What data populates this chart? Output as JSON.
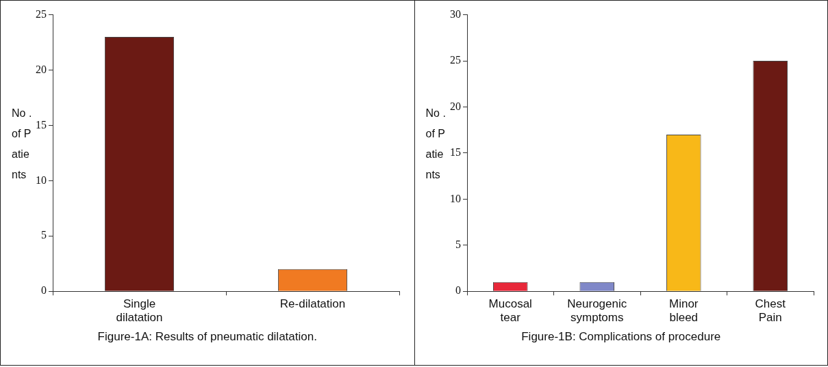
{
  "chart_data": [
    {
      "type": "bar",
      "categories": [
        "Single dilatation",
        "Re-dilatation"
      ],
      "values": [
        23,
        2
      ],
      "colors": [
        "#6b1a14",
        "#f07a22"
      ],
      "ylabel": "No .of Patients",
      "ylim": [
        0,
        25
      ],
      "yticks": [
        0,
        5,
        10,
        15,
        20,
        25
      ],
      "annotations": [
        "Figure-1A: Results of pneumatic dilatation."
      ]
    },
    {
      "type": "bar",
      "categories": [
        "Mucosal tear",
        "Neurogenic symptoms",
        "Minor bleed",
        "Chest Pain"
      ],
      "values": [
        1,
        1,
        17,
        25
      ],
      "colors": [
        "#e8283a",
        "#8088c8",
        "#f8b818",
        "#6b1a14"
      ],
      "ylabel": "No .of Patients",
      "ylim": [
        0,
        30
      ],
      "yticks": [
        0,
        5,
        10,
        15,
        20,
        25,
        30
      ],
      "annotations": [
        "Figure-1B: Complications of procedure"
      ]
    }
  ]
}
